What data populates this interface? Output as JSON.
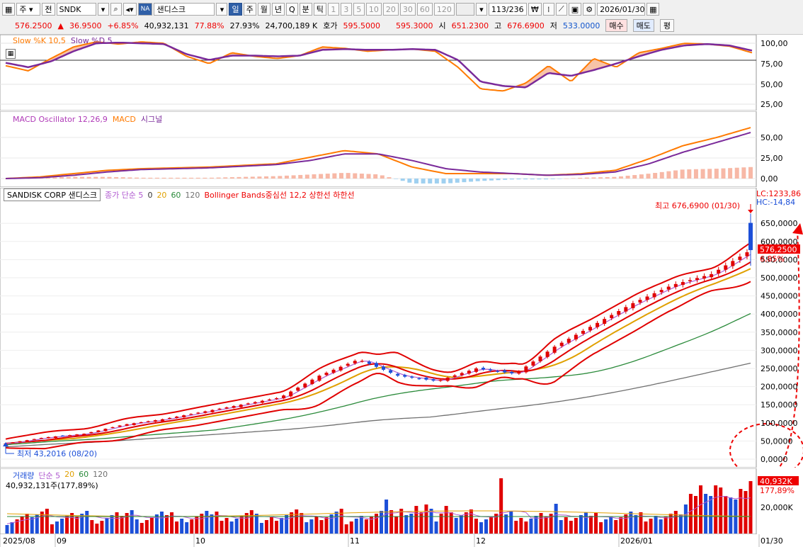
{
  "toolbar": {
    "market_label": "주",
    "type_label": "전",
    "symbol_value": "SNDK",
    "na_badge": "NA",
    "name_value": "샌디스크",
    "period_buttons": [
      "일",
      "주",
      "월",
      "년",
      "Q",
      "분",
      "틱"
    ],
    "active_period": "일",
    "minute_buttons": [
      "1",
      "3",
      "5",
      "10",
      "20",
      "30",
      "60",
      "120"
    ],
    "count_value": "113/236",
    "date_value": "2026/01/30"
  },
  "quote": {
    "price": "576.2500",
    "change": "36.9500",
    "change_pct": "+6.85%",
    "volume": "40,932,131",
    "pct1": "77.88%",
    "pct2": "27.93%",
    "amount": "24,700,189 K",
    "bid_label": "호가",
    "bid_value": "595.5000",
    "ask_value": "595.3000",
    "open_label": "시",
    "open_value": "651.2300",
    "high_label": "고",
    "high_value": "676.6900",
    "low_label": "저",
    "low_value": "533.0000",
    "buy_label": "매수",
    "sell_label": "매도",
    "eval_label": "평"
  },
  "stoch": {
    "legend_k": "Slow %K 10,5",
    "legend_d": "Slow %D 5",
    "axis": [
      "100,00",
      "75,00",
      "50,00",
      "25,00"
    ]
  },
  "macd": {
    "legend_osc": "MACD Oscillator 12,26,9",
    "legend_macd": "MACD",
    "legend_signal": "시그널",
    "axis": [
      "50,00",
      "25,00",
      "0,00"
    ]
  },
  "price_panel": {
    "name_box": "SANDISK CORP  샌디스크",
    "legend_ma": "종가 단순 5",
    "ma_periods": [
      "0",
      "20",
      "60",
      "120"
    ],
    "legend_bb": "Bollinger Bands중심선 12,2 상한선 하한선",
    "lc": "LC:1233,86",
    "hc": "HC:-14,84",
    "high_note": "최고 676,6900 (01/30)",
    "low_note": "최저 43,2016 (08/20)",
    "price_tag": "576,2500",
    "pct_tag": "6,85%",
    "axis": [
      "650,0000",
      "600,0000",
      "550,0000",
      "500,0000",
      "450,0000",
      "400,0000",
      "350,0000",
      "300,0000",
      "250,0000",
      "200,0000",
      "150,0000",
      "100,0000",
      "50,0000",
      "0,0000"
    ]
  },
  "volume_panel": {
    "legend_name": "거래량",
    "legend_ma": "단순 5",
    "ma_periods": [
      "20",
      "60",
      "120"
    ],
    "total": "40,932,131주(177,89%)",
    "tag_value": "40,932K",
    "tag_pct": "177,89%",
    "axis": [
      "20,000K"
    ]
  },
  "x_axis": {
    "labels": [
      "2025/08",
      "09",
      "10",
      "11",
      "12",
      "2026/01",
      "01/30"
    ]
  },
  "colors": {
    "up": "#e00000",
    "down": "#1c4fd8",
    "stoch_k": "#ff7a00",
    "stoch_d": "#7a2a9a",
    "bb": "#e00000",
    "ma5": "#b05ad0",
    "ma20": "#e0a000",
    "ma60": "#2a8a3a",
    "ma120": "#707070"
  },
  "chart_data": {
    "type": "candlestick",
    "series": [
      {
        "name": "SANDISK CORP",
        "values": [
          43.2,
          60,
          70,
          95,
          110,
          130,
          150,
          170,
          230,
          275,
          230,
          215,
          250,
          235,
          310,
          370,
          430,
          480,
          510,
          576.25
        ]
      }
    ],
    "high": 676.69,
    "low": 43.2016,
    "ylim": [
      0,
      680
    ],
    "ylabel": "",
    "xlabel": ""
  }
}
